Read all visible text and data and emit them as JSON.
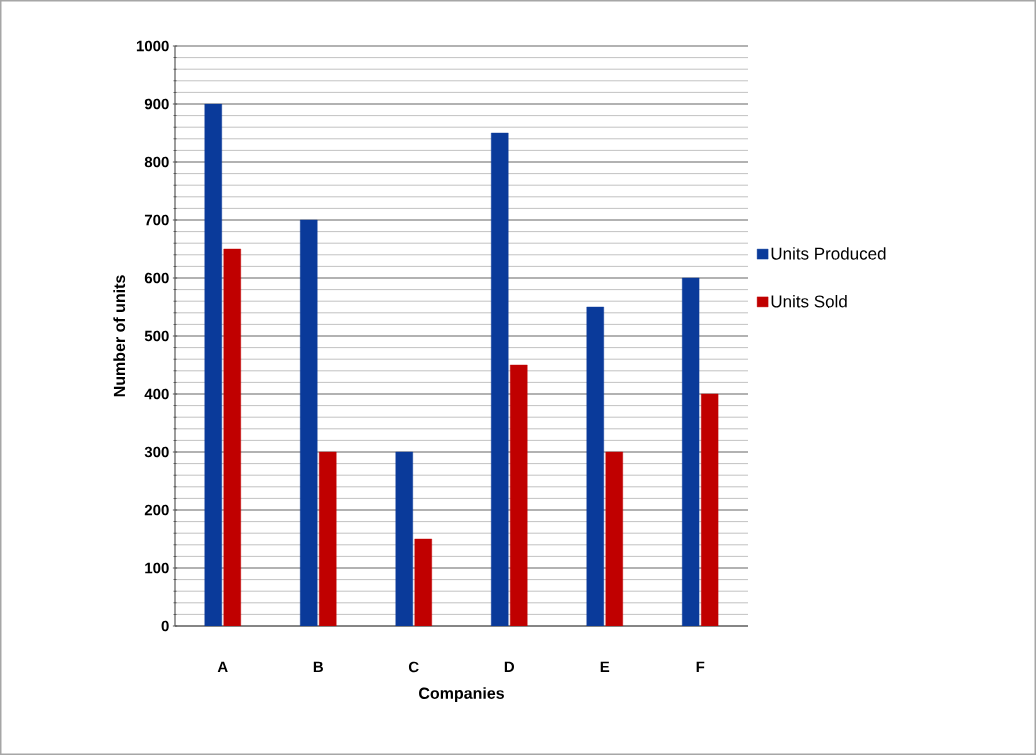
{
  "chart_data": {
    "type": "bar",
    "xlabel": "Companies",
    "ylabel": "Number of units",
    "categories": [
      "A",
      "B",
      "C",
      "D",
      "E",
      "F"
    ],
    "series": [
      {
        "name": "Units Produced",
        "color": "#0a3a9a",
        "values": [
          900,
          700,
          300,
          850,
          550,
          600
        ]
      },
      {
        "name": "Units Sold",
        "color": "#c00000",
        "values": [
          650,
          300,
          150,
          450,
          300,
          400
        ]
      }
    ],
    "ylim": [
      0,
      1000
    ],
    "yticks": [
      0,
      100,
      200,
      300,
      400,
      500,
      600,
      700,
      800,
      900,
      1000
    ],
    "grid": "y",
    "legend": "right"
  }
}
